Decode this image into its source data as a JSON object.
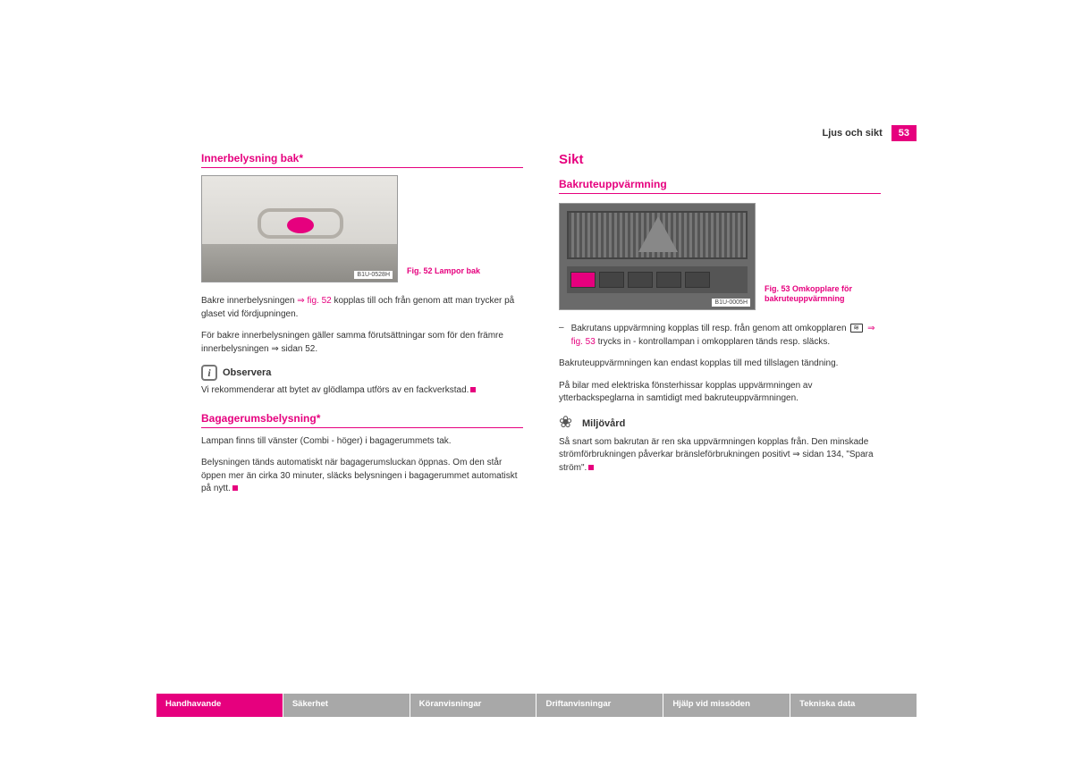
{
  "header": {
    "title": "Ljus och sikt",
    "page_number": "53"
  },
  "left": {
    "h1": "Innerbelysning bak*",
    "fig52_label": "B1U-0528H",
    "fig52_caption": "Fig. 52   Lampor bak",
    "p1a": "Bakre innerbelysningen ",
    "p1_ref": "⇒ fig. 52",
    "p1b": " kopplas till och från genom att man trycker på glaset vid fördjupningen.",
    "p2": "För bakre innerbelysningen gäller samma förutsättningar som för den främre innerbelysningen ⇒ sidan 52.",
    "note_title": "Observera",
    "note_text": "Vi rekommenderar att bytet av glödlampa utförs av en fackverkstad.",
    "h2": "Bagagerumsbelysning*",
    "p3": "Lampan finns till vänster (Combi - höger) i bagagerummets tak.",
    "p4": "Belysningen tänds automatiskt när bagagerumsluckan öppnas. Om den står öppen mer än cirka 30 minuter, släcks belysningen i bagagerummet automatiskt på nytt."
  },
  "right": {
    "main": "Sikt",
    "sub": "Bakruteuppvärmning",
    "fig53_label": "B1U-0005H",
    "fig53_caption": "Fig. 53   Omkopplare för bakruteuppvärmning",
    "bullet_a": "Bakrutans uppvärmning kopplas till resp. från genom att omkopplaren ",
    "bullet_ref": " ⇒ fig. 53",
    "bullet_b": " trycks in - kontrollampan i omkopplaren tänds resp. släcks.",
    "p1": "Bakruteuppvärmningen kan endast kopplas till med tillslagen tändning.",
    "p2": "På bilar med elektriska fönsterhissar kopplas uppvärmningen av ytterbackspeglarna in samtidigt med bakruteuppvärmningen.",
    "env_title": "Miljövård",
    "env_text": "Så snart som bakrutan är ren ska uppvärmningen kopplas från. Den minskade strömförbrukningen påverkar bränsleförbrukningen positivt ⇒ sidan 134, \"Spara ström\"."
  },
  "tabs": {
    "t1": "Handhavande",
    "t2": "Säkerhet",
    "t3": "Köranvisningar",
    "t4": "Driftanvisningar",
    "t5": "Hjälp vid missöden",
    "t6": "Tekniska data"
  }
}
